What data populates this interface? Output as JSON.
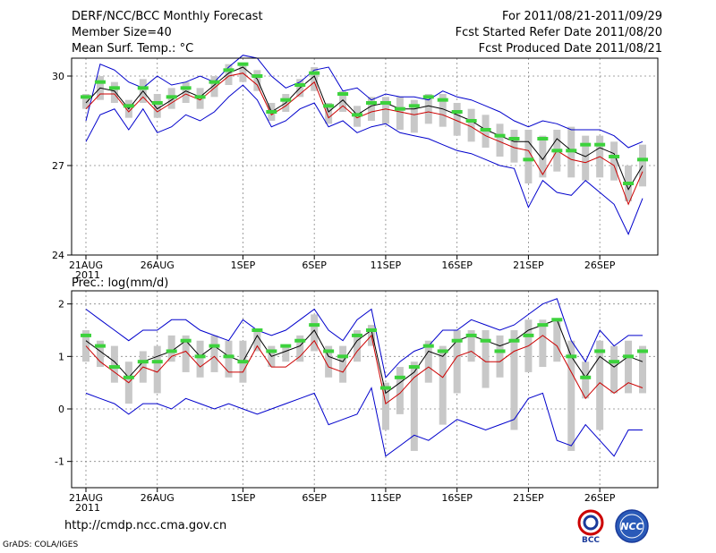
{
  "header": {
    "title": "DERF/NCC/BCC Monthly Forecast",
    "member_size": "Member Size=40",
    "variable": "Mean Surf. Temp.: °C",
    "period": "For 2011/08/21-2011/09/29",
    "started": "Fcst Started Refer Date 2011/08/20",
    "produced": "Fcst Produced Date 2011/08/21"
  },
  "footer": {
    "url": "http://cmdp.ncc.cma.gov.cn",
    "grads": "GrADS: COLA/IGES",
    "logo_bcc": "BCC",
    "logo_ncc": "NCC"
  },
  "colors": {
    "max_min": "#0000cc",
    "mean": "#000000",
    "red": "#cc0000",
    "box": "#c8c8c8",
    "marker": "#3cd23c"
  },
  "chart_data": [
    {
      "type": "line",
      "title": "Mean Surf. Temp.: °C",
      "ylim": [
        24,
        30.6
      ],
      "yticks": [
        24,
        27,
        30
      ],
      "xtick_labels": [
        [
          "21AUG",
          "2011"
        ],
        [
          "26AUG"
        ],
        [
          "1SEP"
        ],
        [
          "6SEP"
        ],
        [
          "11SEP"
        ],
        [
          "16SEP"
        ],
        [
          "21SEP"
        ],
        [
          "26SEP"
        ]
      ],
      "xtick_index": [
        0,
        5,
        11,
        16,
        21,
        26,
        31,
        36
      ],
      "series": [
        {
          "name": "max",
          "values": [
            28.5,
            30.4,
            30.2,
            29.8,
            29.6,
            30.0,
            29.7,
            29.8,
            30.0,
            29.8,
            30.3,
            30.7,
            30.6,
            30.0,
            29.6,
            29.8,
            30.2,
            30.3,
            29.5,
            29.6,
            29.2,
            29.4,
            29.3,
            29.3,
            29.2,
            29.5,
            29.3,
            29.2,
            29.0,
            28.8,
            28.5,
            28.3,
            28.5,
            28.4,
            28.2,
            28.2,
            28.2,
            28.0,
            27.6,
            27.8
          ]
        },
        {
          "name": "mean",
          "values": [
            29.1,
            29.6,
            29.5,
            28.9,
            29.5,
            28.9,
            29.2,
            29.5,
            29.3,
            29.7,
            30.1,
            30.3,
            29.9,
            28.8,
            29.1,
            29.6,
            30.0,
            28.8,
            29.2,
            28.7,
            29.0,
            29.1,
            28.9,
            28.9,
            29.0,
            28.9,
            28.7,
            28.5,
            28.2,
            28.0,
            27.8,
            27.8,
            27.2,
            27.9,
            27.5,
            27.3,
            27.6,
            27.4,
            26.2,
            27.0
          ]
        },
        {
          "name": "red",
          "values": [
            28.9,
            29.4,
            29.4,
            28.8,
            29.3,
            28.8,
            29.1,
            29.4,
            29.2,
            29.6,
            30.0,
            30.1,
            29.7,
            28.7,
            29.0,
            29.4,
            29.8,
            28.6,
            29.0,
            28.6,
            28.8,
            28.9,
            28.8,
            28.7,
            28.8,
            28.7,
            28.5,
            28.3,
            28.0,
            27.8,
            27.6,
            27.5,
            26.7,
            27.5,
            27.2,
            27.1,
            27.3,
            27.0,
            25.7,
            26.8
          ]
        },
        {
          "name": "min",
          "values": [
            27.8,
            28.7,
            28.9,
            28.2,
            28.9,
            28.1,
            28.3,
            28.7,
            28.5,
            28.8,
            29.3,
            29.7,
            29.2,
            28.3,
            28.5,
            28.9,
            29.1,
            28.3,
            28.5,
            28.1,
            28.3,
            28.4,
            28.1,
            28.0,
            27.9,
            27.7,
            27.5,
            27.4,
            27.2,
            27.0,
            26.9,
            25.6,
            26.5,
            26.1,
            26.0,
            26.5,
            26.1,
            25.7,
            24.7,
            25.9
          ]
        }
      ],
      "box_upper": [
        29.4,
        30.0,
        29.8,
        29.2,
        29.9,
        29.4,
        29.6,
        29.8,
        29.6,
        30.0,
        30.4,
        30.4,
        30.2,
        29.1,
        29.4,
        29.9,
        30.3,
        29.1,
        29.5,
        29.0,
        29.3,
        29.3,
        29.3,
        29.2,
        29.4,
        29.4,
        29.1,
        28.9,
        28.7,
        28.4,
        28.2,
        28.2,
        28.0,
        28.2,
        28.3,
        28.0,
        28.0,
        27.8,
        27.0,
        27.7
      ],
      "box_lower": [
        28.9,
        29.2,
        29.1,
        28.6,
        29.1,
        28.6,
        28.9,
        29.1,
        28.9,
        29.3,
        29.7,
        29.8,
        29.5,
        28.5,
        28.8,
        29.3,
        29.5,
        28.4,
        28.8,
        28.3,
        28.5,
        28.4,
        28.2,
        28.1,
        28.4,
        28.3,
        28.0,
        27.8,
        27.6,
        27.3,
        27.1,
        26.4,
        26.6,
        26.8,
        26.6,
        26.5,
        26.6,
        26.5,
        25.8,
        26.3
      ],
      "markers": [
        29.3,
        29.8,
        29.6,
        29.0,
        29.6,
        29.1,
        29.3,
        29.6,
        29.3,
        29.8,
        30.2,
        30.4,
        30.0,
        28.8,
        29.2,
        29.7,
        30.1,
        29.0,
        29.4,
        28.7,
        29.1,
        29.1,
        28.9,
        29.0,
        29.3,
        29.2,
        28.8,
        28.5,
        28.2,
        28.0,
        27.9,
        27.2,
        27.9,
        27.5,
        27.5,
        27.7,
        27.7,
        27.3,
        26.4,
        27.2
      ]
    },
    {
      "type": "line",
      "title": "Prec.: log(mm/d)",
      "ylim": [
        -1.5,
        2.25
      ],
      "yticks": [
        -1,
        0,
        1,
        2
      ],
      "xtick_labels": [
        [
          "21AUG",
          "2011"
        ],
        [
          "26AUG"
        ],
        [
          "1SEP"
        ],
        [
          "6SEP"
        ],
        [
          "11SEP"
        ],
        [
          "16SEP"
        ],
        [
          "21SEP"
        ],
        [
          "26SEP"
        ]
      ],
      "xtick_index": [
        0,
        5,
        11,
        16,
        21,
        26,
        31,
        36
      ],
      "series": [
        {
          "name": "max",
          "values": [
            1.9,
            1.7,
            1.5,
            1.3,
            1.5,
            1.5,
            1.7,
            1.7,
            1.5,
            1.4,
            1.3,
            1.7,
            1.5,
            1.4,
            1.5,
            1.7,
            1.9,
            1.5,
            1.3,
            1.7,
            1.9,
            0.6,
            0.9,
            1.1,
            1.2,
            1.5,
            1.5,
            1.7,
            1.6,
            1.5,
            1.6,
            1.8,
            2.0,
            2.1,
            1.3,
            0.9,
            1.5,
            1.2,
            1.4,
            1.4
          ]
        },
        {
          "name": "mean",
          "values": [
            1.3,
            1.1,
            0.9,
            0.6,
            0.9,
            1.0,
            1.1,
            1.3,
            1.0,
            1.2,
            1.0,
            0.9,
            1.4,
            1.0,
            1.1,
            1.2,
            1.5,
            1.0,
            0.9,
            1.3,
            1.5,
            0.3,
            0.5,
            0.7,
            1.1,
            1.0,
            1.3,
            1.4,
            1.3,
            1.2,
            1.3,
            1.5,
            1.6,
            1.7,
            1.0,
            0.6,
            1.0,
            0.8,
            1.0,
            0.9
          ]
        },
        {
          "name": "red",
          "values": [
            1.2,
            0.9,
            0.7,
            0.5,
            0.8,
            0.7,
            1.0,
            1.1,
            0.8,
            1.0,
            0.7,
            0.7,
            1.2,
            0.8,
            0.8,
            1.0,
            1.3,
            0.8,
            0.7,
            1.1,
            1.4,
            0.1,
            0.3,
            0.6,
            0.8,
            0.6,
            1.0,
            1.1,
            0.9,
            0.9,
            1.1,
            1.2,
            1.4,
            1.2,
            0.7,
            0.2,
            0.5,
            0.3,
            0.5,
            0.4
          ]
        },
        {
          "name": "min",
          "values": [
            0.3,
            0.2,
            0.1,
            -0.1,
            0.1,
            0.1,
            0.0,
            0.2,
            0.1,
            0.0,
            0.1,
            0.0,
            -0.1,
            0.0,
            0.1,
            0.2,
            0.3,
            -0.3,
            -0.2,
            -0.1,
            0.4,
            -0.9,
            -0.7,
            -0.5,
            -0.6,
            -0.4,
            -0.2,
            -0.3,
            -0.4,
            -0.3,
            -0.2,
            0.2,
            0.3,
            -0.6,
            -0.7,
            -0.3,
            -0.6,
            -0.9,
            -0.4,
            -0.4
          ]
        }
      ],
      "box_upper": [
        1.5,
        1.3,
        1.2,
        0.9,
        1.1,
        1.2,
        1.4,
        1.4,
        1.3,
        1.4,
        1.3,
        1.3,
        1.5,
        1.2,
        1.2,
        1.4,
        1.8,
        1.2,
        1.2,
        1.5,
        1.6,
        0.5,
        0.8,
        0.9,
        1.3,
        1.2,
        1.5,
        1.5,
        1.5,
        1.4,
        1.5,
        1.7,
        1.7,
        1.7,
        1.3,
        0.9,
        1.3,
        1.2,
        1.3,
        1.2
      ],
      "box_lower": [
        0.9,
        0.8,
        0.5,
        0.1,
        0.5,
        0.3,
        0.9,
        0.7,
        0.6,
        0.7,
        0.6,
        0.5,
        1.1,
        0.8,
        0.9,
        0.9,
        1.1,
        0.6,
        0.5,
        0.9,
        1.2,
        -0.4,
        -0.1,
        -0.8,
        0.5,
        -0.3,
        0.3,
        0.9,
        0.4,
        0.6,
        -0.4,
        0.7,
        0.8,
        0.9,
        -0.8,
        0.2,
        -0.4,
        0.3,
        0.3,
        0.3
      ],
      "markers": [
        1.4,
        1.2,
        0.8,
        0.6,
        0.9,
        0.9,
        1.1,
        1.3,
        1.0,
        1.2,
        1.0,
        0.9,
        1.5,
        1.1,
        1.2,
        1.3,
        1.6,
        1.1,
        1.0,
        1.4,
        1.5,
        0.4,
        0.6,
        0.8,
        1.2,
        1.1,
        1.3,
        1.4,
        1.3,
        1.1,
        1.3,
        1.4,
        1.6,
        1.7,
        1.0,
        0.6,
        1.1,
        0.9,
        1.0,
        1.1
      ]
    }
  ]
}
